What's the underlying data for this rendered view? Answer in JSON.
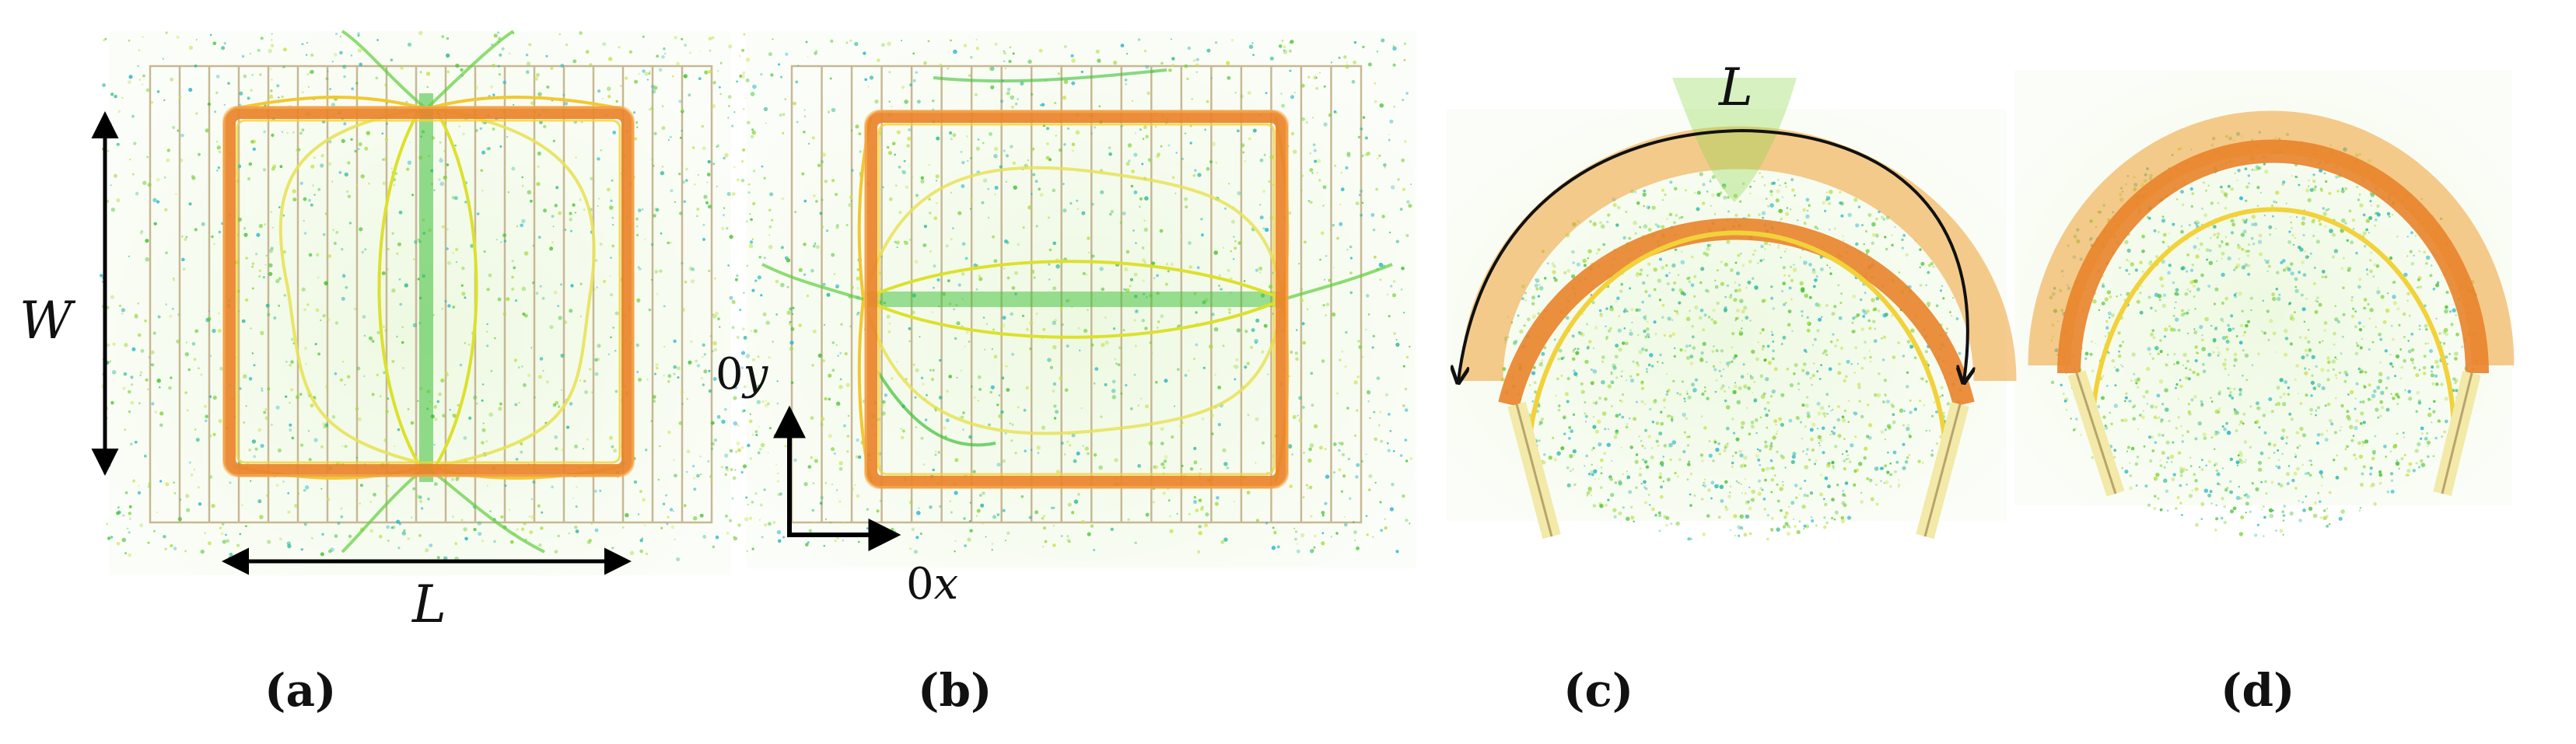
{
  "panels": [
    {
      "id": "a",
      "caption": "(a)"
    },
    {
      "id": "b",
      "caption": "(b)"
    },
    {
      "id": "c",
      "caption": "(c)"
    },
    {
      "id": "d",
      "caption": "(d)"
    }
  ],
  "labels": {
    "width": "W",
    "length_a": "L",
    "length_c": "L",
    "axis_y_prefix": "0",
    "axis_y_var": "y",
    "axis_x_prefix": "0",
    "axis_x_var": "x"
  },
  "colors": {
    "frame_orange": "#e9832a",
    "frame_yellow": "#f2d23a",
    "grid_line": "#c8b893",
    "particle_green": "#43c02e",
    "particle_lightgreen": "#a7dc47",
    "particle_cyan": "#25b5c9",
    "outline_yellow": "#dce12a"
  }
}
